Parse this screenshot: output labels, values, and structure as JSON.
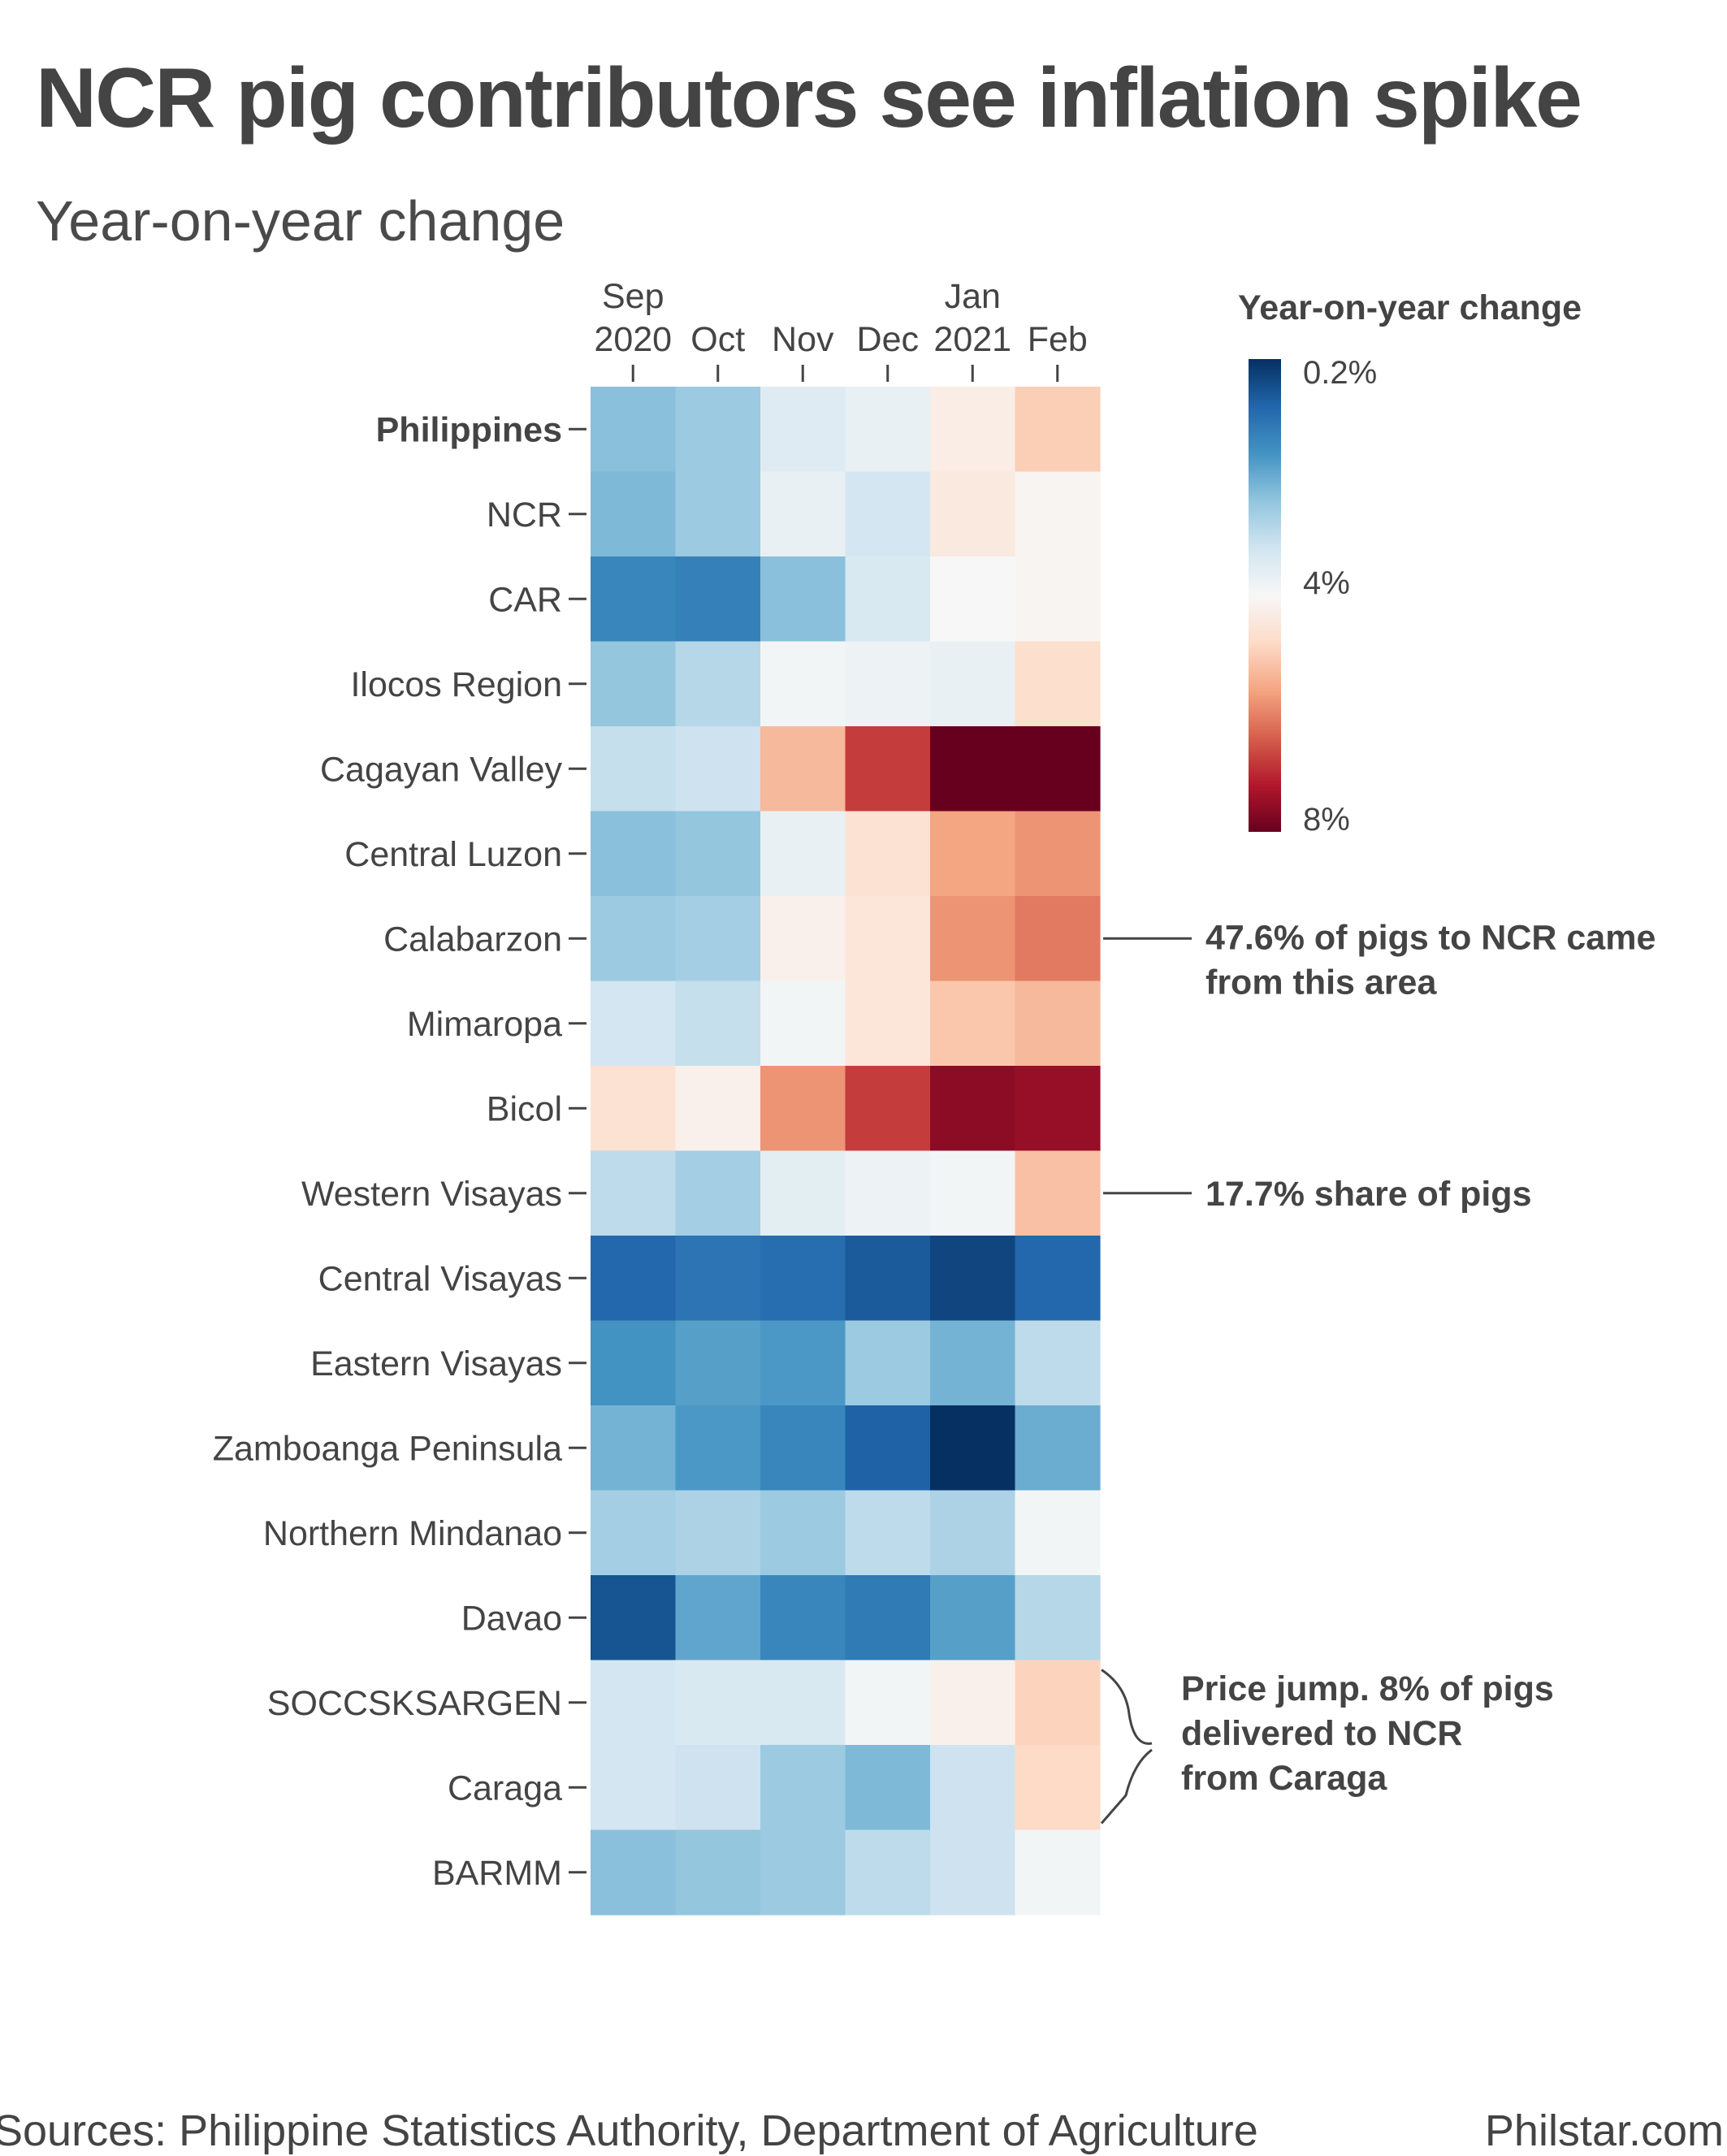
{
  "title": "NCR pig contributors see inflation spike",
  "subtitle": "Year-on-year change",
  "source": "Sources: Philippine Statistics Authority, Department of Agriculture",
  "credit": "Philstar.com",
  "chart_data": {
    "type": "heatmap",
    "x_labels": [
      {
        "line1": "Sep",
        "line2": "2020"
      },
      {
        "line1": "",
        "line2": "Oct"
      },
      {
        "line1": "",
        "line2": "Nov"
      },
      {
        "line1": "",
        "line2": "Dec"
      },
      {
        "line1": "Jan",
        "line2": "2021"
      },
      {
        "line1": "",
        "line2": "Feb"
      }
    ],
    "rows": [
      {
        "label": "Philippines",
        "bold": true,
        "values": [
          2.4,
          2.6,
          3.5,
          3.7,
          4.3,
          5.0
        ]
      },
      {
        "label": "NCR",
        "values": [
          2.3,
          2.6,
          3.7,
          3.3,
          4.4,
          4.1
        ]
      },
      {
        "label": "CAR",
        "values": [
          1.5,
          1.4,
          2.4,
          3.4,
          4.0,
          4.1
        ]
      },
      {
        "label": "Ilocos Region",
        "values": [
          2.5,
          2.9,
          3.9,
          3.8,
          3.7,
          4.7
        ]
      },
      {
        "label": "Cagayan Valley",
        "values": [
          3.1,
          3.2,
          5.3,
          6.8,
          8.0,
          8.0
        ]
      },
      {
        "label": "Central Luzon",
        "values": [
          2.4,
          2.5,
          3.7,
          4.6,
          5.6,
          5.8
        ]
      },
      {
        "label": "Calabarzon",
        "values": [
          2.6,
          2.7,
          4.2,
          4.5,
          5.8,
          6.1
        ]
      },
      {
        "label": "Mimaropa",
        "values": [
          3.3,
          3.1,
          3.9,
          4.5,
          5.1,
          5.3
        ]
      },
      {
        "label": "Bicol",
        "values": [
          4.6,
          4.2,
          5.8,
          6.8,
          7.6,
          7.5
        ]
      },
      {
        "label": "Western Visayas",
        "values": [
          3.0,
          2.7,
          3.6,
          3.8,
          3.9,
          5.2
        ]
      },
      {
        "label": "Central Visayas",
        "values": [
          1.0,
          1.2,
          1.1,
          0.8,
          0.5,
          1.0
        ]
      },
      {
        "label": "Eastern Visayas",
        "values": [
          1.7,
          1.9,
          1.8,
          2.6,
          2.2,
          3.0
        ]
      },
      {
        "label": "Zamboanga Peninsula",
        "values": [
          2.2,
          1.8,
          1.5,
          0.9,
          0.2,
          2.1
        ]
      },
      {
        "label": "Northern Mindanao",
        "values": [
          2.7,
          2.8,
          2.6,
          3.0,
          2.8,
          3.9
        ]
      },
      {
        "label": "Davao",
        "values": [
          0.7,
          2.0,
          1.5,
          1.3,
          1.9,
          2.9
        ]
      },
      {
        "label": "SOCCSKSARGEN",
        "values": [
          3.3,
          3.4,
          3.4,
          3.9,
          4.2,
          4.9
        ]
      },
      {
        "label": "Caraga",
        "values": [
          3.3,
          3.2,
          2.6,
          2.3,
          3.2,
          4.8
        ]
      },
      {
        "label": "BARMM",
        "values": [
          2.4,
          2.5,
          2.6,
          3.0,
          3.2,
          3.9
        ]
      }
    ],
    "legend": {
      "title": "Year-on-year change",
      "min": 0.2,
      "mid": 4,
      "max": 8,
      "min_label": "0.2%",
      "mid_label": "4%",
      "max_label": "8%",
      "colors": [
        "#053061",
        "#2166ac",
        "#4393c3",
        "#92c5de",
        "#d1e5f0",
        "#f7f7f7",
        "#fddbc7",
        "#f4a582",
        "#d6604d",
        "#b2182b",
        "#67001f"
      ]
    },
    "annotations": [
      {
        "row": "Calabarzon",
        "style": "line",
        "lines": [
          "47.6% of pigs to NCR came",
          "from this area"
        ]
      },
      {
        "row": "Western Visayas",
        "style": "line",
        "lines": [
          "17.7% share of pigs"
        ]
      },
      {
        "rows": [
          "SOCCSKSARGEN",
          "Caraga"
        ],
        "style": "brace",
        "lines": [
          "Price jump. 8% of pigs",
          "delivered to NCR",
          "from Caraga"
        ]
      }
    ]
  }
}
